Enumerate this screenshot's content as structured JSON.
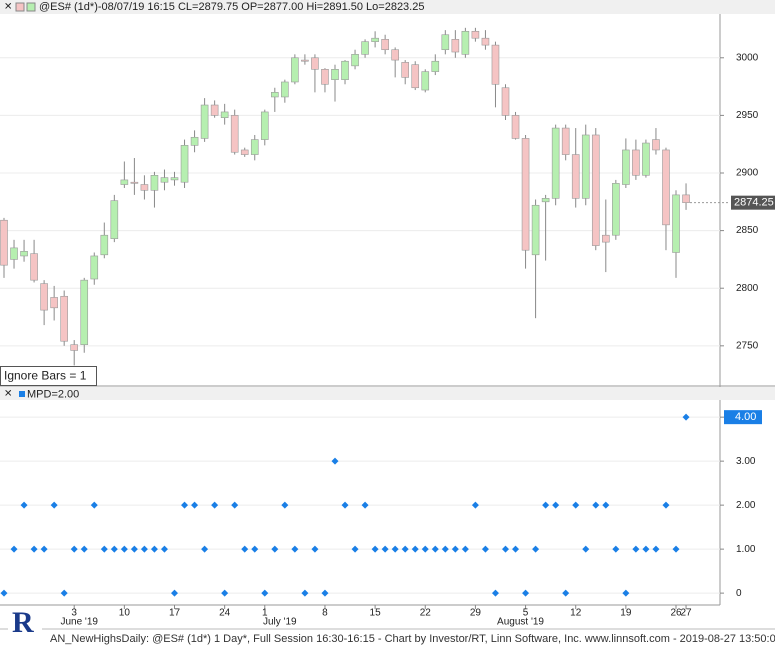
{
  "chart_data": [
    {
      "type": "candlestick",
      "title": "@ES# (1d*)-08/07/19 16:15 CL=2879.75 OP=2877.00 Hi=2891.50 Lo=2823.25",
      "annotation": "Ignore Bars = 1",
      "up_color": "#b6efb0",
      "down_color": "#f5c4c4",
      "wick_color": "#888888",
      "grid": true,
      "ylim": [
        2716,
        3038
      ],
      "yticks": [
        2750,
        2800,
        2850,
        2900,
        2950,
        3000
      ],
      "last_price": 2874.25,
      "open": [
        2859,
        2825,
        2828,
        2830,
        2804,
        2792,
        2793,
        2751,
        2751,
        2808,
        2829,
        2843,
        2890,
        2892,
        2890,
        2885,
        2892,
        2894,
        2892,
        2924,
        2930,
        2959,
        2948,
        2950,
        2920,
        2916,
        2929,
        2966,
        2966,
        2979,
        2998,
        3000,
        2990,
        2981,
        2981,
        2993,
        3003,
        3014,
        3016,
        3007,
        2996,
        2994,
        2972,
        2988,
        3007,
        3016,
        3003,
        3023,
        3017,
        3011,
        2974,
        2950,
        2930,
        2829,
        2875,
        2878,
        2939,
        2916,
        2878,
        2933,
        2846,
        2846,
        2890,
        2920,
        2898,
        2929,
        2920,
        2831,
        2881
      ],
      "high": [
        2861,
        2842,
        2842,
        2842,
        2807,
        2802,
        2798,
        2755,
        2809,
        2831,
        2857,
        2881,
        2910,
        2913,
        2898,
        2901,
        2903,
        2901,
        2929,
        2937,
        2965,
        2963,
        2960,
        2955,
        2922,
        2933,
        2955,
        2974,
        2981,
        3003,
        3003,
        3003,
        2991,
        2994,
        2998,
        3007,
        3016,
        3023,
        3020,
        3009,
        2998,
        2997,
        2990,
        3003,
        3024,
        3024,
        3026,
        3026,
        3024,
        3014,
        2977,
        2953,
        2933,
        2877,
        2881,
        2942,
        2942,
        2939,
        2942,
        2939,
        2877,
        2894,
        2930,
        2929,
        2929,
        2939,
        2922,
        2885,
        2891
      ],
      "low": [
        2809,
        2817,
        2823,
        2805,
        2768,
        2772,
        2750,
        2733,
        2744,
        2803,
        2826,
        2840,
        2887,
        2881,
        2877,
        2870,
        2885,
        2889,
        2887,
        2918,
        2927,
        2948,
        2942,
        2916,
        2914,
        2911,
        2924,
        2953,
        2961,
        2977,
        2994,
        2970,
        2970,
        2962,
        2977,
        2990,
        3000,
        3009,
        3003,
        2983,
        2977,
        2972,
        2970,
        2985,
        3003,
        3000,
        3000,
        3014,
        3007,
        2957,
        2946,
        2929,
        2817,
        2774,
        2824,
        2872,
        2911,
        2870,
        2872,
        2833,
        2814,
        2842,
        2887,
        2894,
        2896,
        2916,
        2833,
        2809,
        2868
      ],
      "close": [
        2820,
        2835,
        2832,
        2807,
        2781,
        2783,
        2754,
        2746,
        2807,
        2828,
        2846,
        2876,
        2894,
        2891,
        2885,
        2898,
        2896,
        2896,
        2924,
        2931,
        2959,
        2950,
        2953,
        2918,
        2916,
        2929,
        2953,
        2970,
        2979,
        3000,
        2997,
        2990,
        2977,
        2990,
        2997,
        3003,
        3014,
        3017,
        3007,
        2998,
        2983,
        2974,
        2988,
        2997,
        3020,
        3005,
        3023,
        3017,
        3011,
        2977,
        2950,
        2930,
        2833,
        2872,
        2878,
        2939,
        2916,
        2878,
        2933,
        2837,
        2840,
        2891,
        2920,
        2898,
        2926,
        2920,
        2855,
        2881,
        2874.25
      ]
    },
    {
      "type": "scatter",
      "categories": [
        null,
        null,
        null,
        null,
        null,
        null,
        null,
        "3",
        null,
        null,
        null,
        null,
        "10",
        null,
        null,
        null,
        null,
        "17",
        null,
        null,
        null,
        null,
        "24",
        null,
        null,
        null,
        "1",
        null,
        null,
        null,
        null,
        null,
        "8",
        null,
        null,
        null,
        null,
        "15",
        null,
        null,
        null,
        null,
        "22",
        null,
        null,
        null,
        null,
        "29",
        null,
        null,
        null,
        null,
        "5",
        null,
        null,
        null,
        null,
        "12",
        null,
        null,
        null,
        null,
        "19",
        null,
        null,
        null,
        null,
        "26",
        "27"
      ],
      "month_categories": [
        null,
        null,
        null,
        null,
        null,
        null,
        null,
        "June '19",
        null,
        null,
        null,
        null,
        null,
        null,
        null,
        null,
        null,
        null,
        null,
        null,
        null,
        null,
        null,
        null,
        null,
        null,
        null,
        "July '19",
        null,
        null,
        null,
        null,
        null,
        null,
        null,
        null,
        null,
        null,
        null,
        null,
        null,
        null,
        null,
        null,
        null,
        null,
        null,
        null,
        null,
        null,
        null,
        "August '19",
        null,
        null,
        null,
        null,
        null,
        null,
        null,
        null,
        null,
        null,
        null,
        null,
        null,
        null,
        null,
        null,
        null
      ],
      "ylim": [
        -0.27,
        4.39
      ],
      "yticks": [
        0,
        {
          "value": 1,
          "label": "1.00"
        },
        {
          "value": 2,
          "label": "2.00"
        },
        {
          "value": 3,
          "label": "3.00"
        },
        {
          "value": 4,
          "label": "4.00"
        }
      ],
      "grid": true,
      "series": [
        {
          "name": "MPD=2.00",
          "color": "#1a7fe6",
          "values": [
            0,
            1,
            2,
            1,
            1,
            2,
            0,
            1,
            1,
            2,
            1,
            1,
            1,
            1,
            1,
            1,
            1,
            0,
            2,
            2,
            1,
            2,
            0,
            2,
            1,
            1,
            0,
            1,
            2,
            1,
            0,
            1,
            0,
            3,
            2,
            1,
            2,
            1,
            1,
            1,
            1,
            1,
            1,
            1,
            1,
            1,
            1,
            2,
            1,
            0,
            1,
            1,
            0,
            1,
            2,
            2,
            0,
            2,
            1,
            2,
            2,
            1,
            0,
            1,
            1,
            1,
            2,
            1,
            4
          ]
        }
      ]
    }
  ],
  "footer": "AN_NewHighsDaily: @ES# (1d*) 1 Day*, Full Session 16:30-16:15 - Chart by Investor/RT, Linn Software, Inc. www.linnsoft.com - 2019-08-27 13:50:0"
}
